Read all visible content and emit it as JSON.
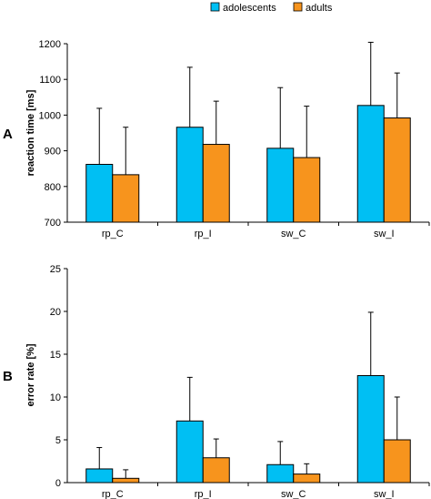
{
  "legend": {
    "position": "top-center",
    "entries": [
      {
        "name": "adolescents",
        "color": "#00BFF3"
      },
      {
        "name": "adults",
        "color": "#F7941D"
      }
    ]
  },
  "chart_data": [
    {
      "type": "bar",
      "panel_label": "A",
      "ylabel": "reaction time [ms]",
      "xlabel": "",
      "ylim": [
        700,
        1200
      ],
      "yticks": [
        700,
        800,
        900,
        1000,
        1100,
        1200
      ],
      "categories": [
        "rp_C",
        "rp_I",
        "sw_C",
        "sw_I"
      ],
      "grid": false,
      "error_bars": "upper",
      "series": [
        {
          "name": "adolescents",
          "color": "#00BFF3",
          "values": [
            862,
            966,
            907,
            1027
          ],
          "errors": [
            157,
            168,
            170,
            177
          ]
        },
        {
          "name": "adults",
          "color": "#F7941D",
          "values": [
            833,
            918,
            881,
            992
          ],
          "errors": [
            133,
            121,
            144,
            126
          ]
        }
      ]
    },
    {
      "type": "bar",
      "panel_label": "B",
      "ylabel": "error rate [%]",
      "xlabel": "",
      "ylim": [
        0,
        25
      ],
      "yticks": [
        0,
        5,
        10,
        15,
        20,
        25
      ],
      "categories": [
        "rp_C",
        "rp_I",
        "sw_C",
        "sw_I"
      ],
      "grid": false,
      "error_bars": "upper",
      "series": [
        {
          "name": "adolescents",
          "color": "#00BFF3",
          "values": [
            1.6,
            7.2,
            2.1,
            12.5
          ],
          "errors": [
            2.5,
            5.1,
            2.7,
            7.4
          ]
        },
        {
          "name": "adults",
          "color": "#F7941D",
          "values": [
            0.5,
            2.9,
            1.0,
            5.0
          ],
          "errors": [
            1.0,
            2.2,
            1.2,
            5.0
          ]
        }
      ]
    }
  ]
}
